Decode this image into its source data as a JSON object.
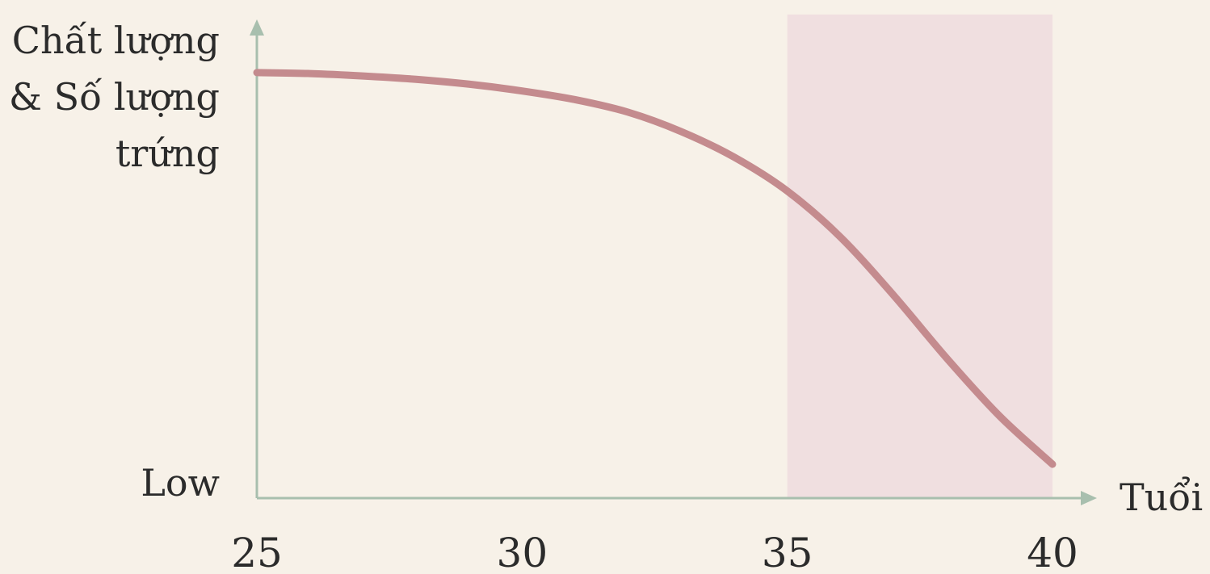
{
  "chart_data": {
    "type": "line",
    "ylabel": [
      "Chất lượng",
      "& Số lượng",
      "trứng"
    ],
    "ymin_label": "Low",
    "xlabel": "Tuổi",
    "xticks": [
      "25",
      "30",
      "35",
      "40"
    ],
    "xlim": [
      25,
      40
    ],
    "ylim": [
      0,
      100
    ],
    "highlight_range": [
      35,
      40
    ],
    "series": [
      {
        "x": [
          25,
          26,
          27,
          28,
          29,
          30,
          31,
          32,
          33,
          34,
          35,
          36,
          37,
          38,
          39,
          40
        ],
        "values": [
          88,
          87.8,
          87.3,
          86.6,
          85.6,
          84.2,
          82.4,
          79.8,
          75.8,
          70.5,
          63.5,
          54,
          42,
          29,
          17,
          7
        ]
      }
    ],
    "grid": false,
    "colors": {
      "background": "#f7f1e8",
      "line": "#c48b8e",
      "highlight": "#f0dfe0",
      "axis": "#a8bfae"
    }
  }
}
